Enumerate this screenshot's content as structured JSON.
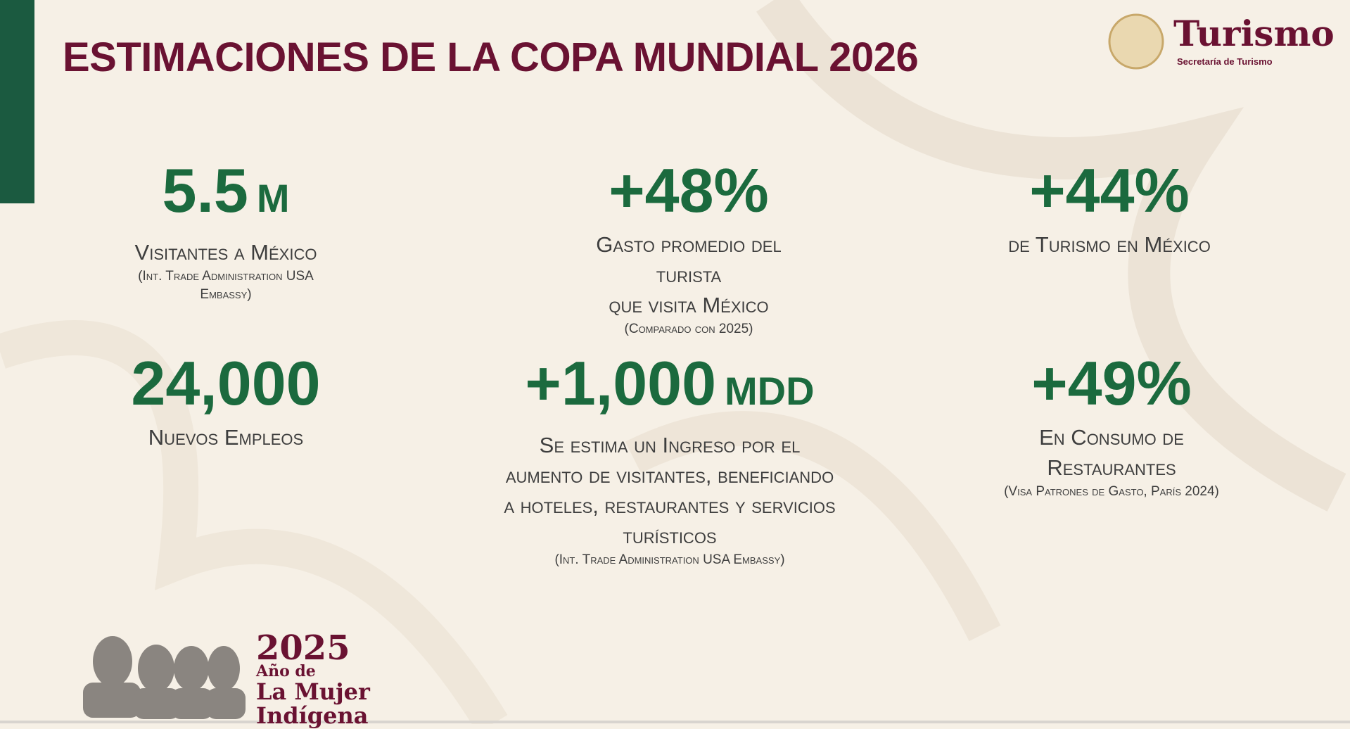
{
  "header": {
    "title": "ESTIMACIONES DE LA COPA MUNDIAL 2026",
    "logo": {
      "name": "Turismo",
      "subtitle": "Secretaría de Turismo"
    }
  },
  "stats": [
    {
      "value": "5.5",
      "unit": "M",
      "label": [
        "Visitantes a México"
      ],
      "source": [
        "(Int. Trade Administration USA",
        "Embassy)"
      ]
    },
    {
      "value": "+48%",
      "label": [
        "Gasto promedio del",
        "turista",
        "que visita México"
      ],
      "source": [
        "(Comparado con 2025)"
      ]
    },
    {
      "value": "+44%",
      "label": [
        "de Turismo en México"
      ]
    },
    {
      "value": "24,000",
      "label": [
        "Nuevos Empleos"
      ]
    },
    {
      "value": "+1,000",
      "unit": "MDD",
      "label": [
        "Se estima un Ingreso por el",
        "aumento de visitantes, beneficiando",
        "a hoteles, restaurantes y servicios",
        "turísticos"
      ],
      "source": [
        "(Int. Trade Administration USA Embassy)"
      ]
    },
    {
      "value": "+49%",
      "label": [
        "En Consumo de",
        "Restaurantes"
      ],
      "source": [
        "(Visa Patrones de Gasto, París 2024)"
      ]
    }
  ],
  "footer": {
    "year": "2025",
    "lines": [
      "Año de",
      "La Mujer",
      "Indígena"
    ]
  }
}
